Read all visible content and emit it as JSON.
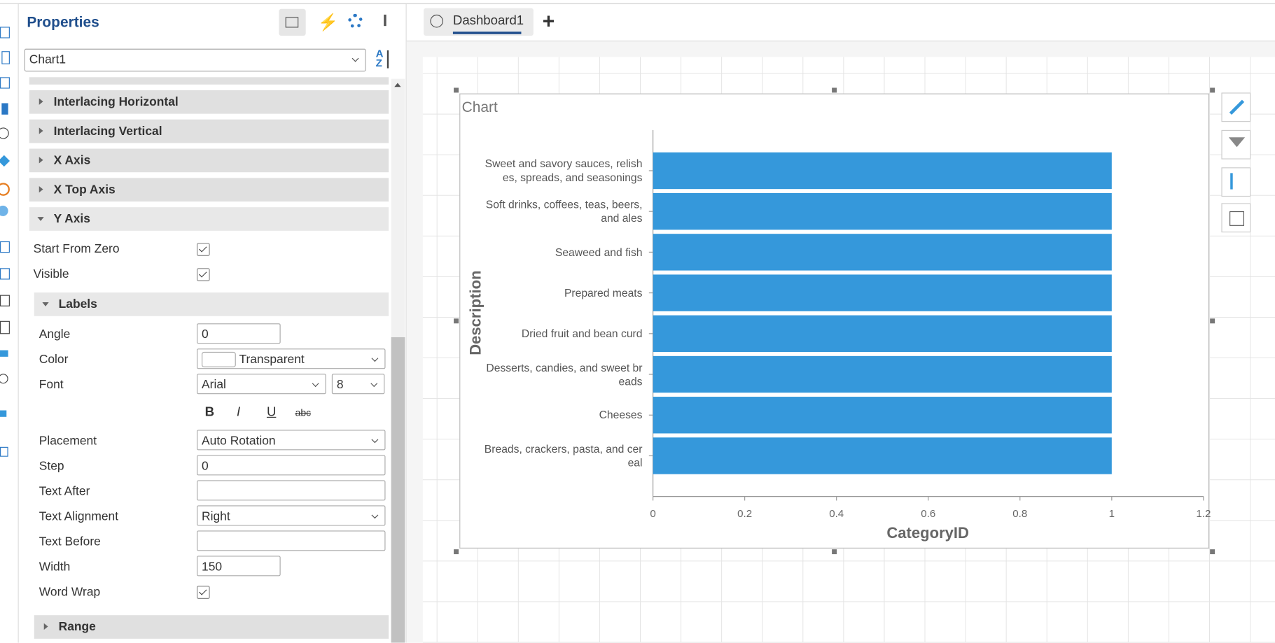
{
  "panel": {
    "title": "Properties",
    "object": "Chart1",
    "sections": [
      "Interlacing Horizontal",
      "Interlacing Vertical",
      "X Axis",
      "X Top Axis"
    ],
    "open_section": "Y Axis",
    "y_axis": [
      {
        "label": "Start From Zero",
        "checked": true
      },
      {
        "label": "Visible",
        "checked": true
      }
    ],
    "labels_section": "Labels",
    "angle": {
      "label": "Angle",
      "value": "0"
    },
    "color": {
      "label": "Color",
      "value": "Transparent"
    },
    "font": {
      "label": "Font",
      "family": "Arial",
      "size": "8"
    },
    "format_buttons": [
      "B",
      "I",
      "U",
      "abc"
    ],
    "placement": {
      "label": "Placement",
      "value": "Auto Rotation"
    },
    "step": {
      "label": "Step",
      "value": "0"
    },
    "text_after": {
      "label": "Text After"
    },
    "text_alignment": {
      "label": "Text Alignment",
      "value": "Right"
    },
    "text_before": {
      "label": "Text Before"
    },
    "width": {
      "label": "Width",
      "value": "150"
    },
    "word_wrap": {
      "label": "Word Wrap",
      "checked": true
    },
    "range_section": "Range"
  },
  "tab": {
    "name": "Dashboard1"
  },
  "chart_data": {
    "type": "hbar",
    "title": "Chart",
    "x_label": "CategoryID",
    "y_label": "Description",
    "categories": [
      "Sweet and savory sauces, relishes, spreads, and seasonings",
      "Soft drinks, coffees, teas, beers, and ales",
      "Seaweed and fish",
      "Prepared meats",
      "Dried fruit and bean curd",
      "Desserts, candies, and sweet breads",
      "Cheeses",
      "Breads, crackers, pasta, and cereal"
    ],
    "values": [
      1,
      1,
      1,
      1,
      1,
      1,
      1,
      1
    ],
    "color": "#3598db",
    "xlim": [
      0,
      1.2
    ],
    "xticks": [
      0,
      0.2,
      0.4,
      0.6,
      0.8,
      1,
      1.2
    ]
  }
}
